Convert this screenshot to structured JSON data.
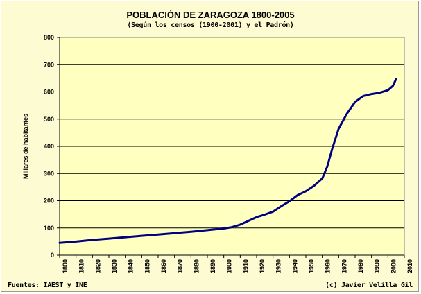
{
  "chart_data": {
    "type": "line",
    "title": "POBLACIÓN DE ZARAGOZA 1800-2005",
    "subtitle": "(Según los censos (1900-2001) y el Padrón)",
    "ylabel": "Millares de habitantes",
    "xlabel": "",
    "xlim": [
      1800,
      2010
    ],
    "ylim": [
      0,
      800
    ],
    "xticks": [
      1800,
      1810,
      1820,
      1830,
      1840,
      1850,
      1860,
      1870,
      1880,
      1890,
      1900,
      1910,
      1920,
      1930,
      1940,
      1950,
      1960,
      1970,
      1980,
      1990,
      2000,
      2010
    ],
    "yticks": [
      0,
      100,
      200,
      300,
      400,
      500,
      600,
      700,
      800
    ],
    "grid": "horizontal",
    "line_color": "#000080",
    "plot_background": "#ffffc0",
    "series": [
      {
        "x": [
          1800,
          1810,
          1820,
          1830,
          1840,
          1850,
          1860,
          1870,
          1880,
          1890,
          1900,
          1905,
          1910,
          1915,
          1920,
          1925,
          1930,
          1935,
          1940,
          1945,
          1950,
          1955,
          1960,
          1963,
          1966,
          1970,
          1975,
          1980,
          1985,
          1990,
          1995,
          2000,
          2003,
          2005
        ],
        "y": [
          45,
          50,
          56,
          61,
          66,
          71,
          76,
          81,
          86,
          92,
          98,
          103,
          112,
          126,
          140,
          149,
          160,
          180,
          198,
          221,
          235,
          255,
          282,
          325,
          390,
          465,
          520,
          563,
          585,
          592,
          597,
          606,
          622,
          648
        ]
      }
    ]
  },
  "footer": {
    "sources": "Fuentes: IAEST y INE",
    "author": "(c) Javier Velilla Gil"
  }
}
